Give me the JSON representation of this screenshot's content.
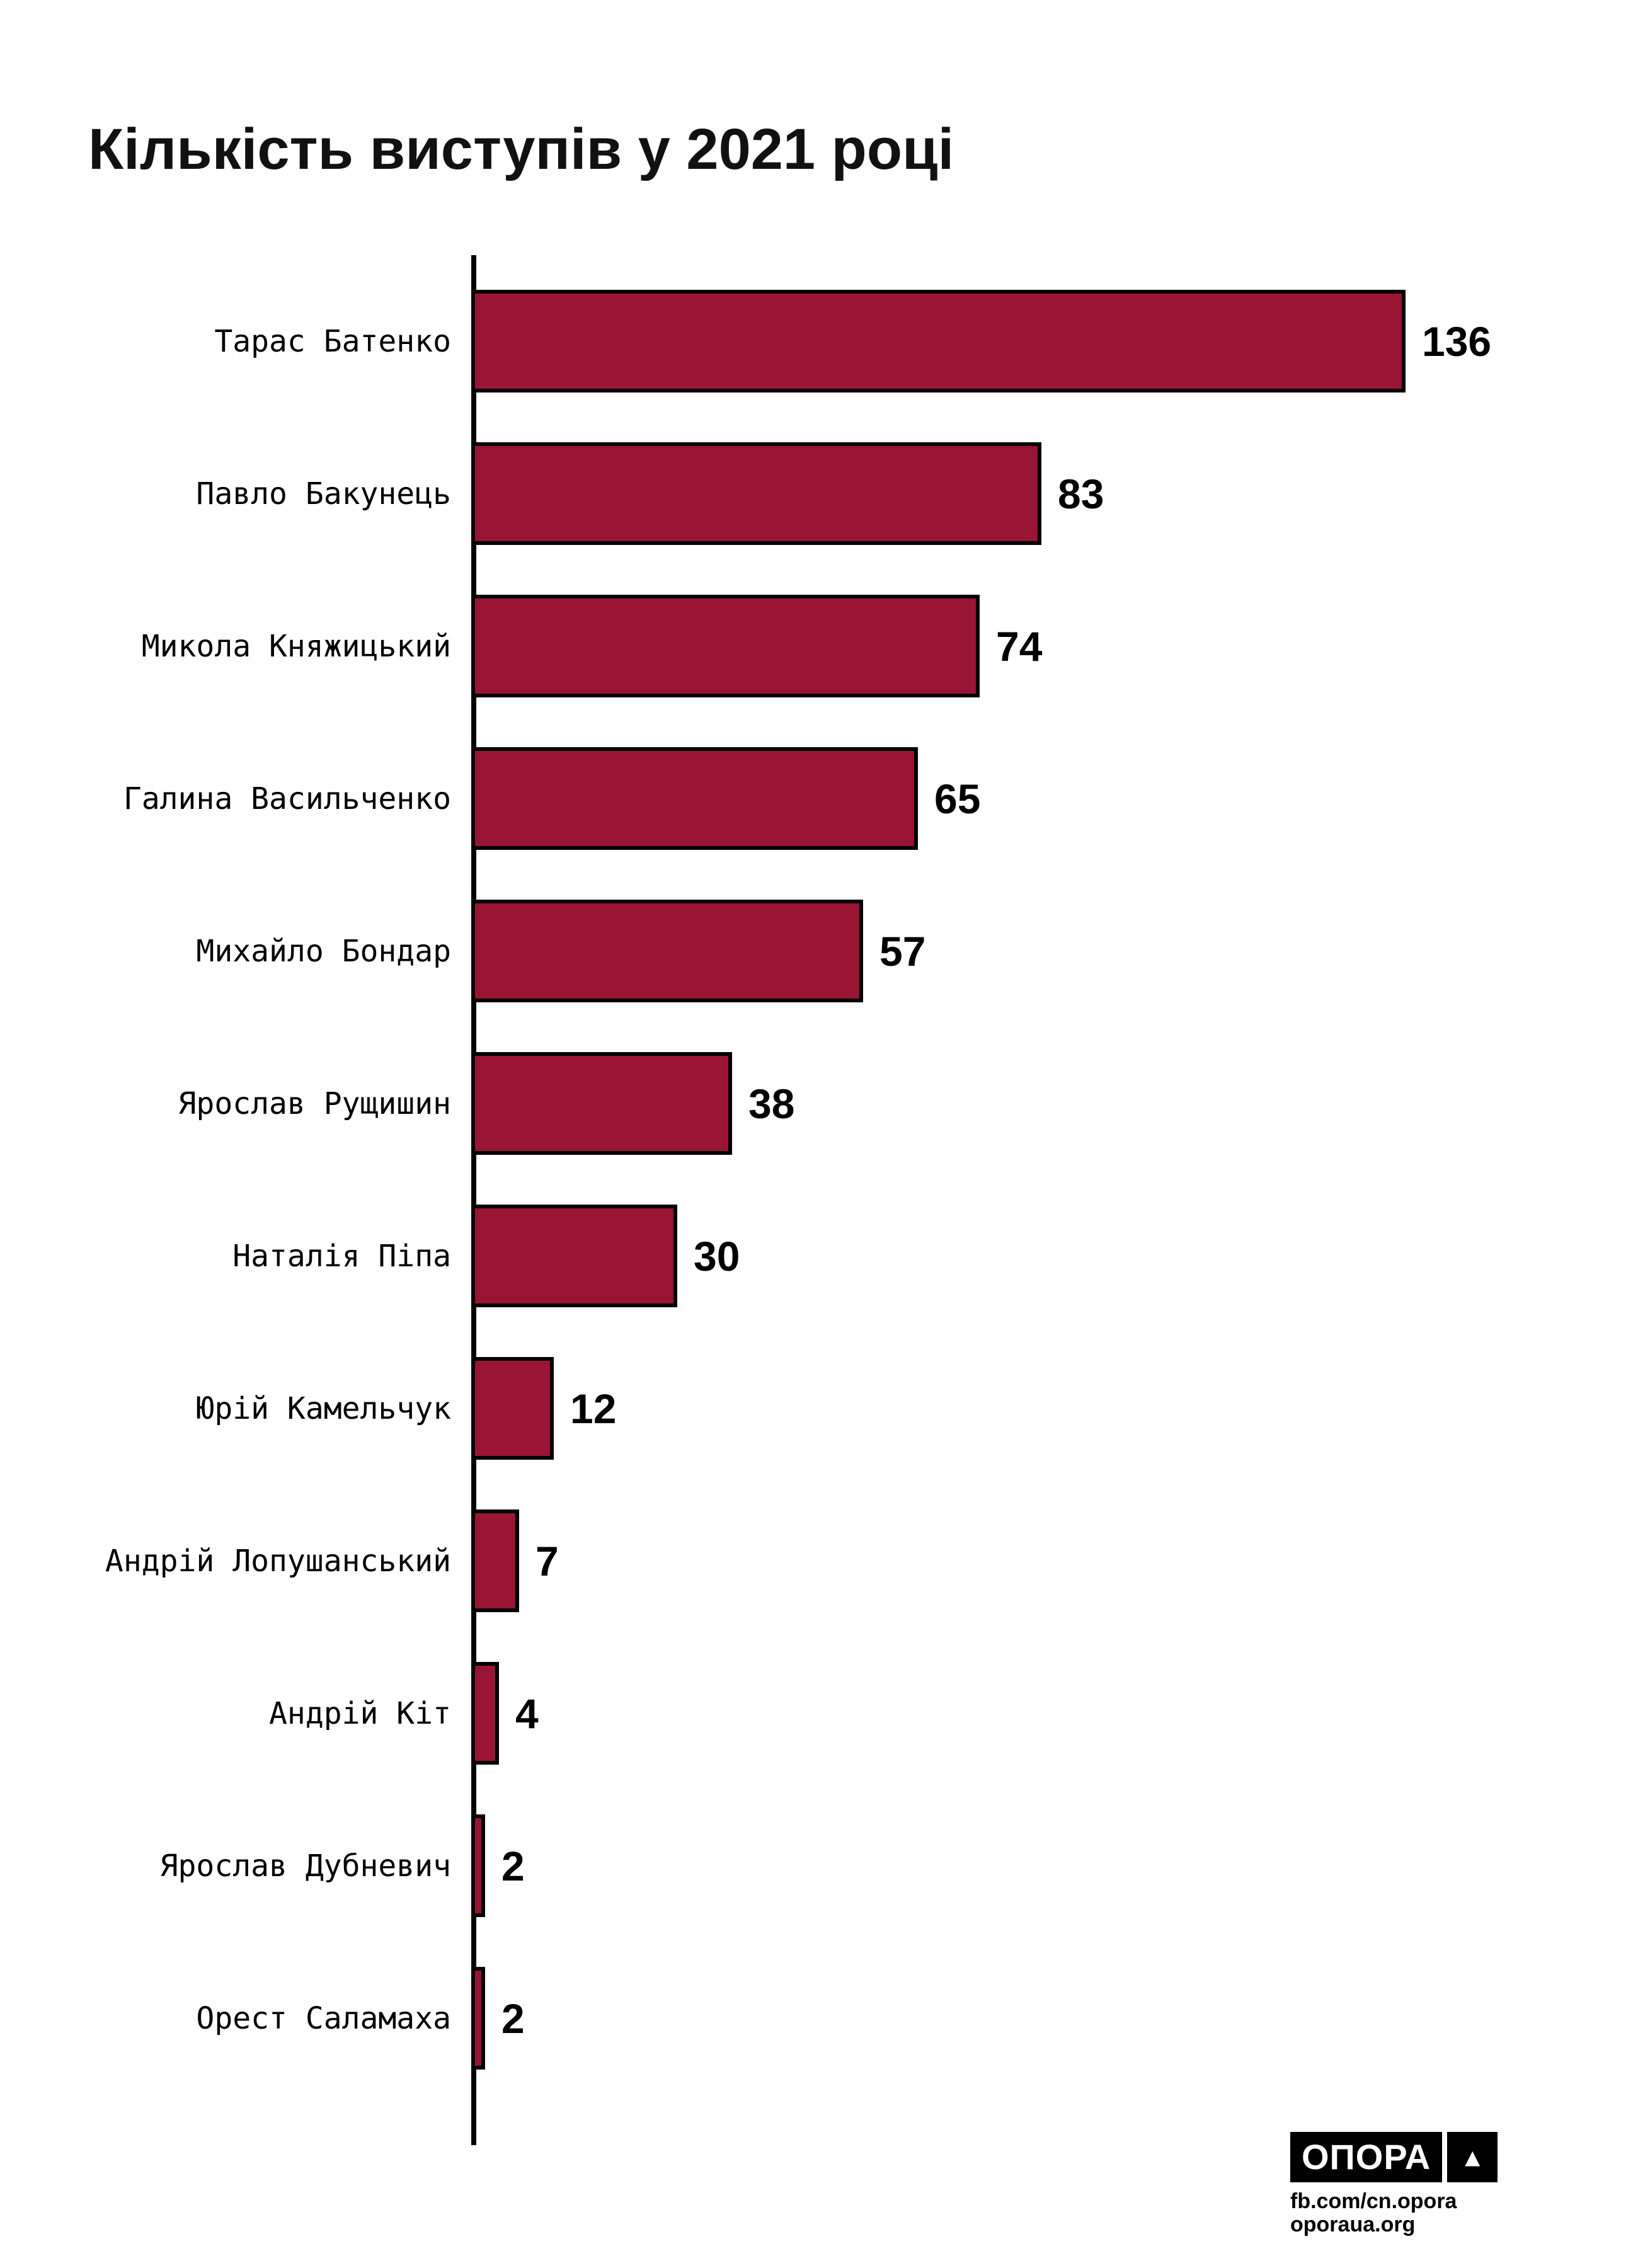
{
  "title": "Кількість виступів у 2021 році",
  "chart_data": {
    "type": "bar",
    "orientation": "horizontal",
    "title": "Кількість виступів у 2021 році",
    "categories": [
      "Тарас Батенко",
      "Павло Бакунець",
      "Микола Княжицький",
      "Галина Васильченко",
      "Михайло Бондар",
      "Ярослав Рущишин",
      "Наталія Піпа",
      "Юрій Камельчук",
      "Андрій Лопушанський",
      "Андрій Кіт",
      "Ярослав Дубневич",
      "Орест Саламаха"
    ],
    "values": [
      136,
      83,
      74,
      65,
      57,
      38,
      30,
      12,
      7,
      4,
      2,
      2
    ],
    "xlim": [
      0,
      136
    ],
    "grid": false,
    "legend": "none",
    "bar_color": "#9A1434",
    "bar_border_color": "#000000"
  },
  "footer": {
    "logo_text": "ОПОРА",
    "logo_triangle_icon": "▲",
    "facebook": "fb.com/cn.opora",
    "website": "oporaua.org"
  }
}
